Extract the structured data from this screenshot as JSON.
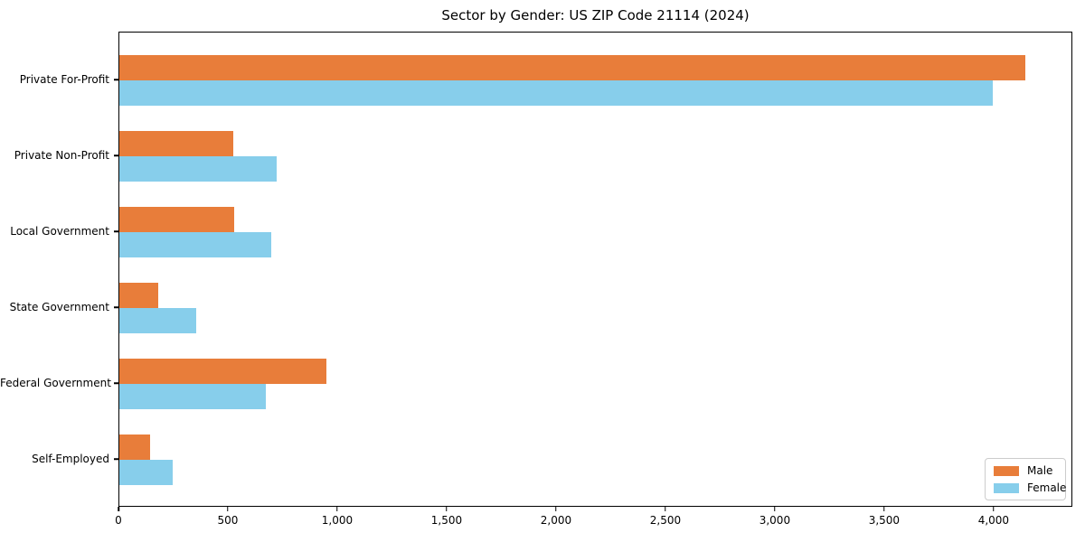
{
  "chart_data": {
    "type": "bar",
    "orientation": "horizontal",
    "title": "Sector by Gender: US ZIP Code 21114 (2024)",
    "categories": [
      "Private For-Profit",
      "Private Non-Profit",
      "Local Government",
      "State Government",
      "Federal Government",
      "Self-Employed"
    ],
    "series": [
      {
        "name": "Male",
        "color": "#e87d3a",
        "values": [
          4150,
          520,
          525,
          180,
          950,
          140
        ]
      },
      {
        "name": "Female",
        "color": "#87ceeb",
        "values": [
          4000,
          720,
          695,
          350,
          670,
          245
        ]
      }
    ],
    "xlabel": "",
    "ylabel": "",
    "xlim": [
      0,
      4360
    ],
    "x_tick_values": [
      0,
      500,
      1000,
      1500,
      2000,
      2500,
      3000,
      3500,
      4000
    ],
    "x_tick_labels": [
      "0",
      "500",
      "1,000",
      "1,500",
      "2,000",
      "2,500",
      "3,000",
      "3,500",
      "4,000"
    ],
    "grid": false,
    "legend_position": "lower right",
    "category_order_note": "top to bottom as listed; Male bar above Female bar in each group"
  }
}
